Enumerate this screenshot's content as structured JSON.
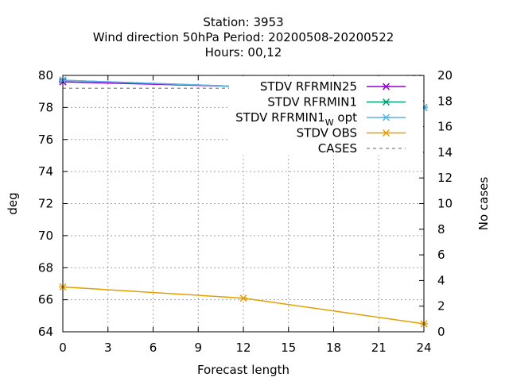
{
  "chart_data": {
    "type": "line",
    "title_lines": [
      "Station:     3953",
      "Wind direction 50hPa   Period: 20200508-20200522",
      "Hours:  00,12"
    ],
    "xlabel": "Forecast length",
    "ylabel": "deg",
    "y2label": "No cases",
    "xlim": [
      0,
      24
    ],
    "ylim": [
      64,
      80
    ],
    "y2lim": [
      0,
      20
    ],
    "xticks": [
      0,
      3,
      6,
      9,
      12,
      15,
      18,
      21,
      24
    ],
    "yticks": [
      64,
      66,
      68,
      70,
      72,
      74,
      76,
      78,
      80
    ],
    "y2ticks": [
      0,
      2,
      4,
      6,
      8,
      10,
      12,
      14,
      16,
      18,
      20
    ],
    "grid": true,
    "legend_position": "top-right",
    "series": [
      {
        "name": "STDV RFRMIN25",
        "axis": "y",
        "color": "#9400d3",
        "dash": false,
        "marker": "x",
        "x": [
          0,
          12,
          24
        ],
        "y": [
          79.6,
          79.3,
          78.0
        ]
      },
      {
        "name": "STDV RFRMIN1",
        "axis": "y",
        "color": "#009e73",
        "dash": false,
        "marker": "x",
        "x": [
          0,
          12,
          24
        ],
        "y": [
          79.7,
          79.3,
          78.0
        ]
      },
      {
        "name": "STDV RFRMIN1",
        "name_sub": "W",
        "name_suffix": " opt",
        "axis": "y",
        "color": "#56b4e9",
        "dash": false,
        "marker": "x",
        "x": [
          0,
          12,
          24
        ],
        "y": [
          79.7,
          79.3,
          78.0
        ]
      },
      {
        "name": "STDV OBS",
        "axis": "y",
        "color": "#e69f00",
        "dash": false,
        "marker": "x",
        "x": [
          0,
          12,
          24
        ],
        "y": [
          66.8,
          66.1,
          64.5
        ]
      },
      {
        "name": "CASES",
        "axis": "y2",
        "color": "#999999",
        "dash": true,
        "marker": "none",
        "x": [
          0,
          12,
          24
        ],
        "y": [
          19,
          19,
          20
        ]
      }
    ]
  }
}
